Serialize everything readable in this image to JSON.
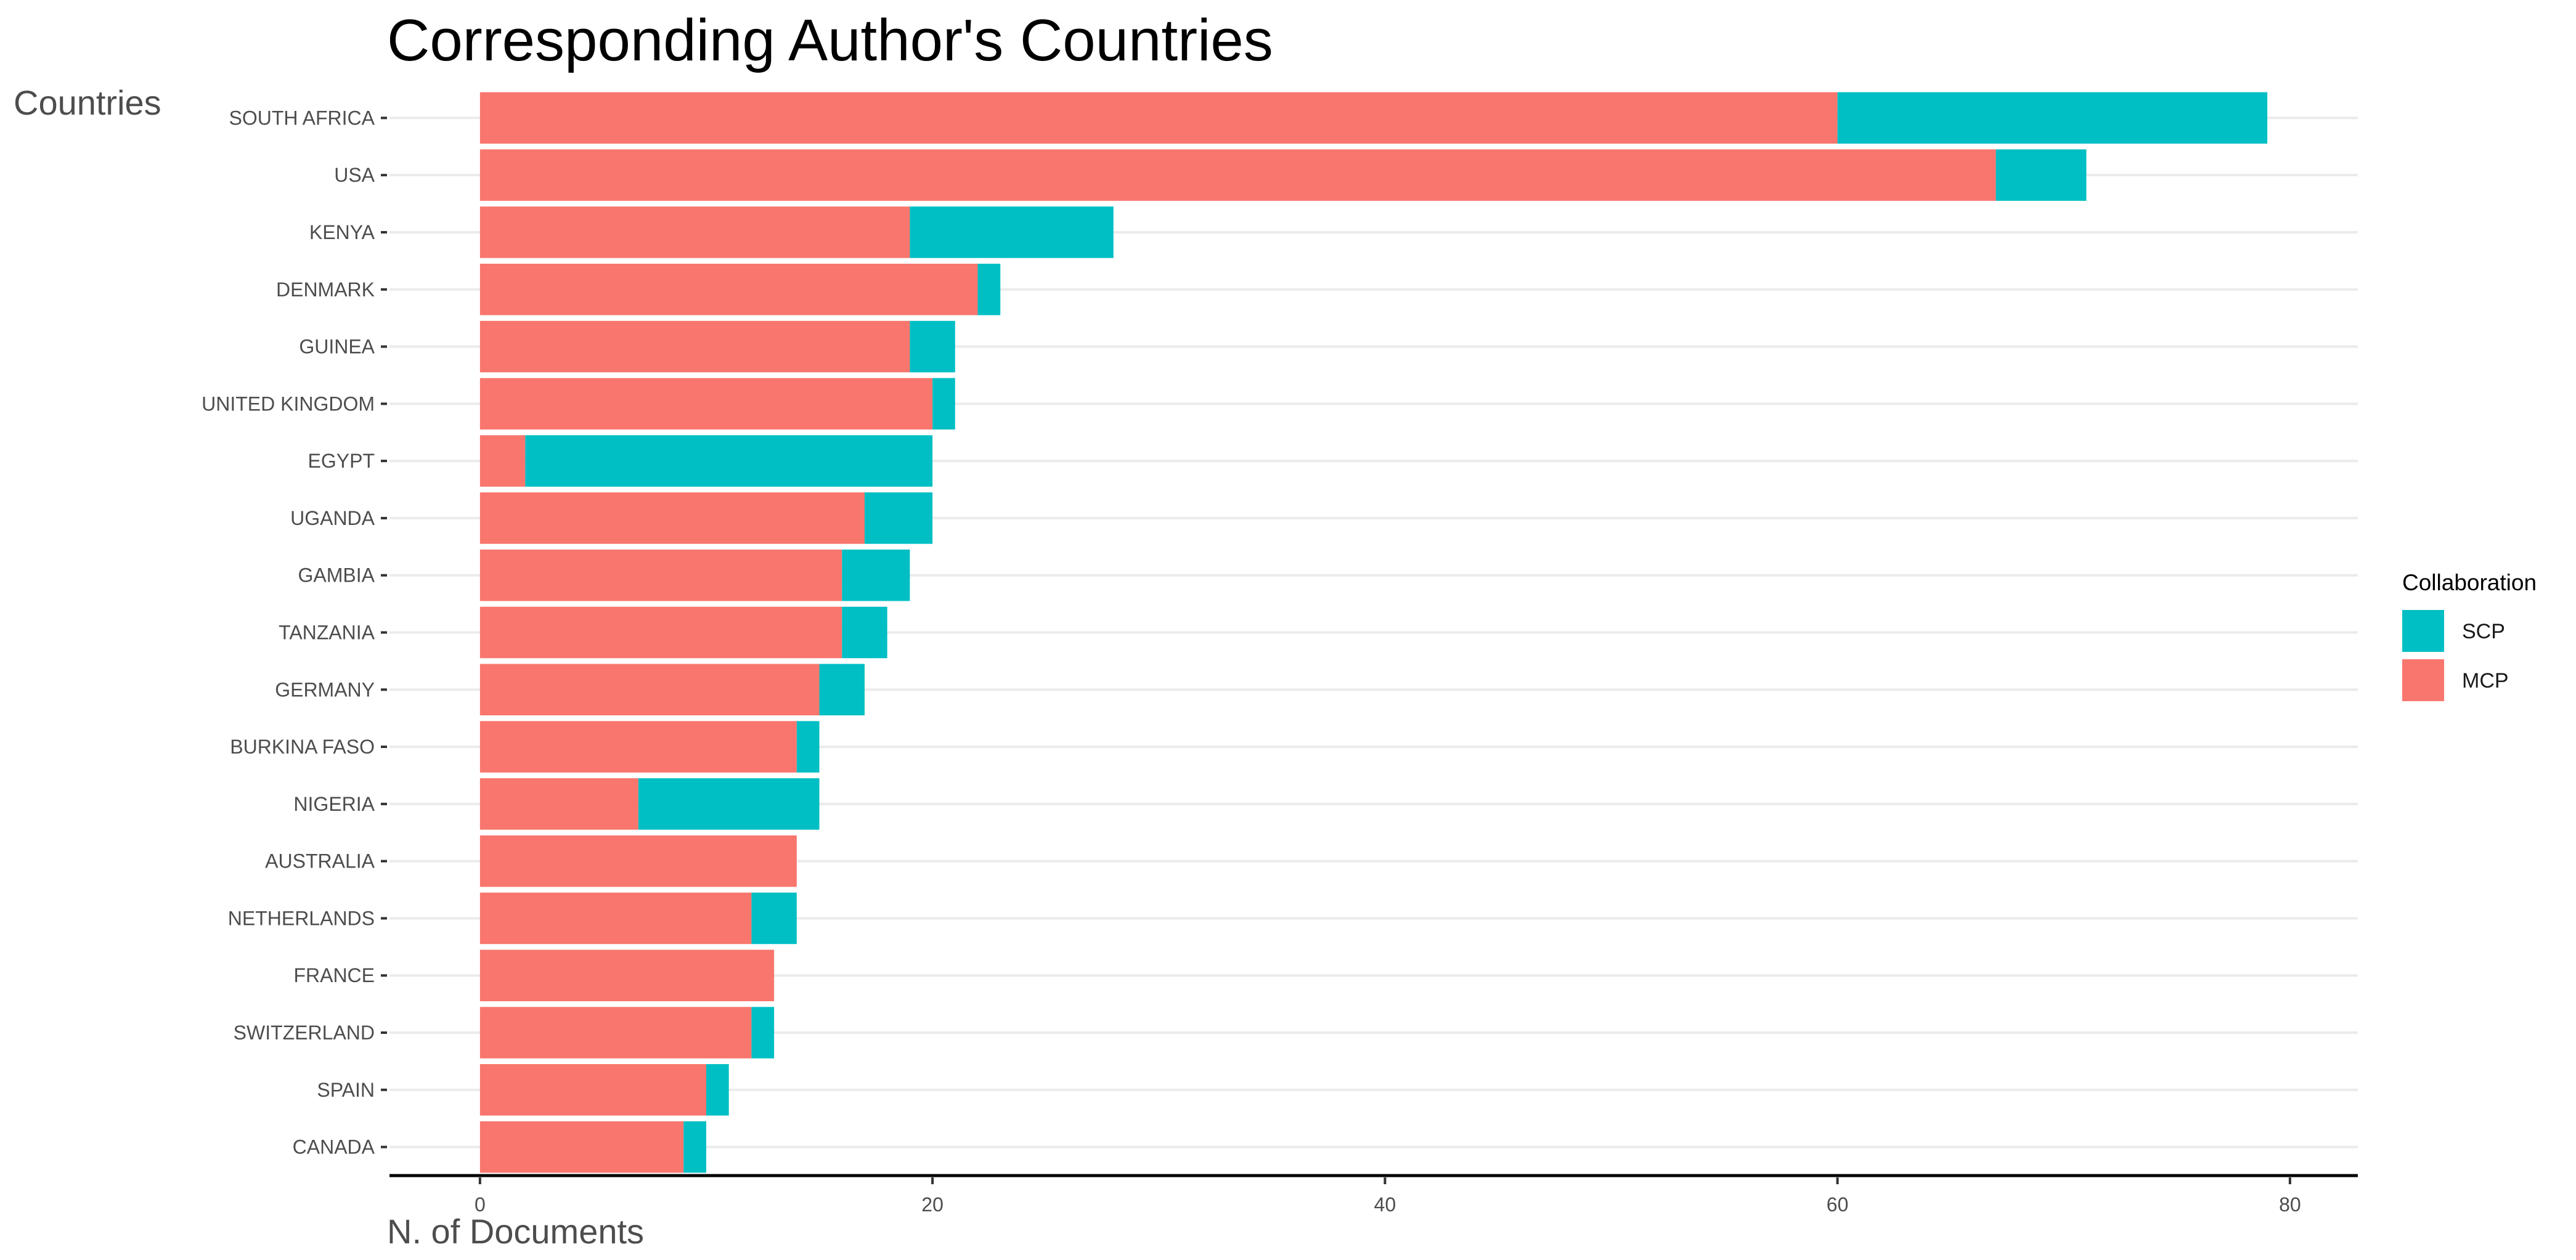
{
  "chart_data": {
    "type": "bar",
    "orientation": "horizontal",
    "stacked": true,
    "title": "Corresponding Author's Countries",
    "xlabel": "N. of Documents",
    "ylabel": "Countries",
    "xlim": [
      -4,
      83
    ],
    "xticks": [
      0,
      20,
      40,
      60,
      80
    ],
    "grid": true,
    "legend": {
      "title": "Collaboration",
      "position": "right",
      "entries": [
        {
          "name": "SCP",
          "color": "#00BFC4"
        },
        {
          "name": "MCP",
          "color": "#F8766D"
        }
      ]
    },
    "categories": [
      "SOUTH AFRICA",
      "USA",
      "KENYA",
      "DENMARK",
      "GUINEA",
      "UNITED KINGDOM",
      "EGYPT",
      "UGANDA",
      "GAMBIA",
      "TANZANIA",
      "GERMANY",
      "BURKINA FASO",
      "NIGERIA",
      "AUSTRALIA",
      "NETHERLANDS",
      "FRANCE",
      "SWITZERLAND",
      "SPAIN",
      "CANADA"
    ],
    "series": [
      {
        "name": "MCP",
        "color": "#F8766D",
        "values": [
          60,
          67,
          19,
          22,
          19,
          20,
          2,
          17,
          16,
          16,
          15,
          14,
          7,
          14,
          12,
          13,
          12,
          10,
          9
        ]
      },
      {
        "name": "SCP",
        "color": "#00BFC4",
        "values": [
          19,
          4,
          9,
          1,
          2,
          1,
          18,
          3,
          3,
          2,
          2,
          1,
          8,
          0,
          2,
          0,
          1,
          1,
          1
        ]
      }
    ]
  }
}
